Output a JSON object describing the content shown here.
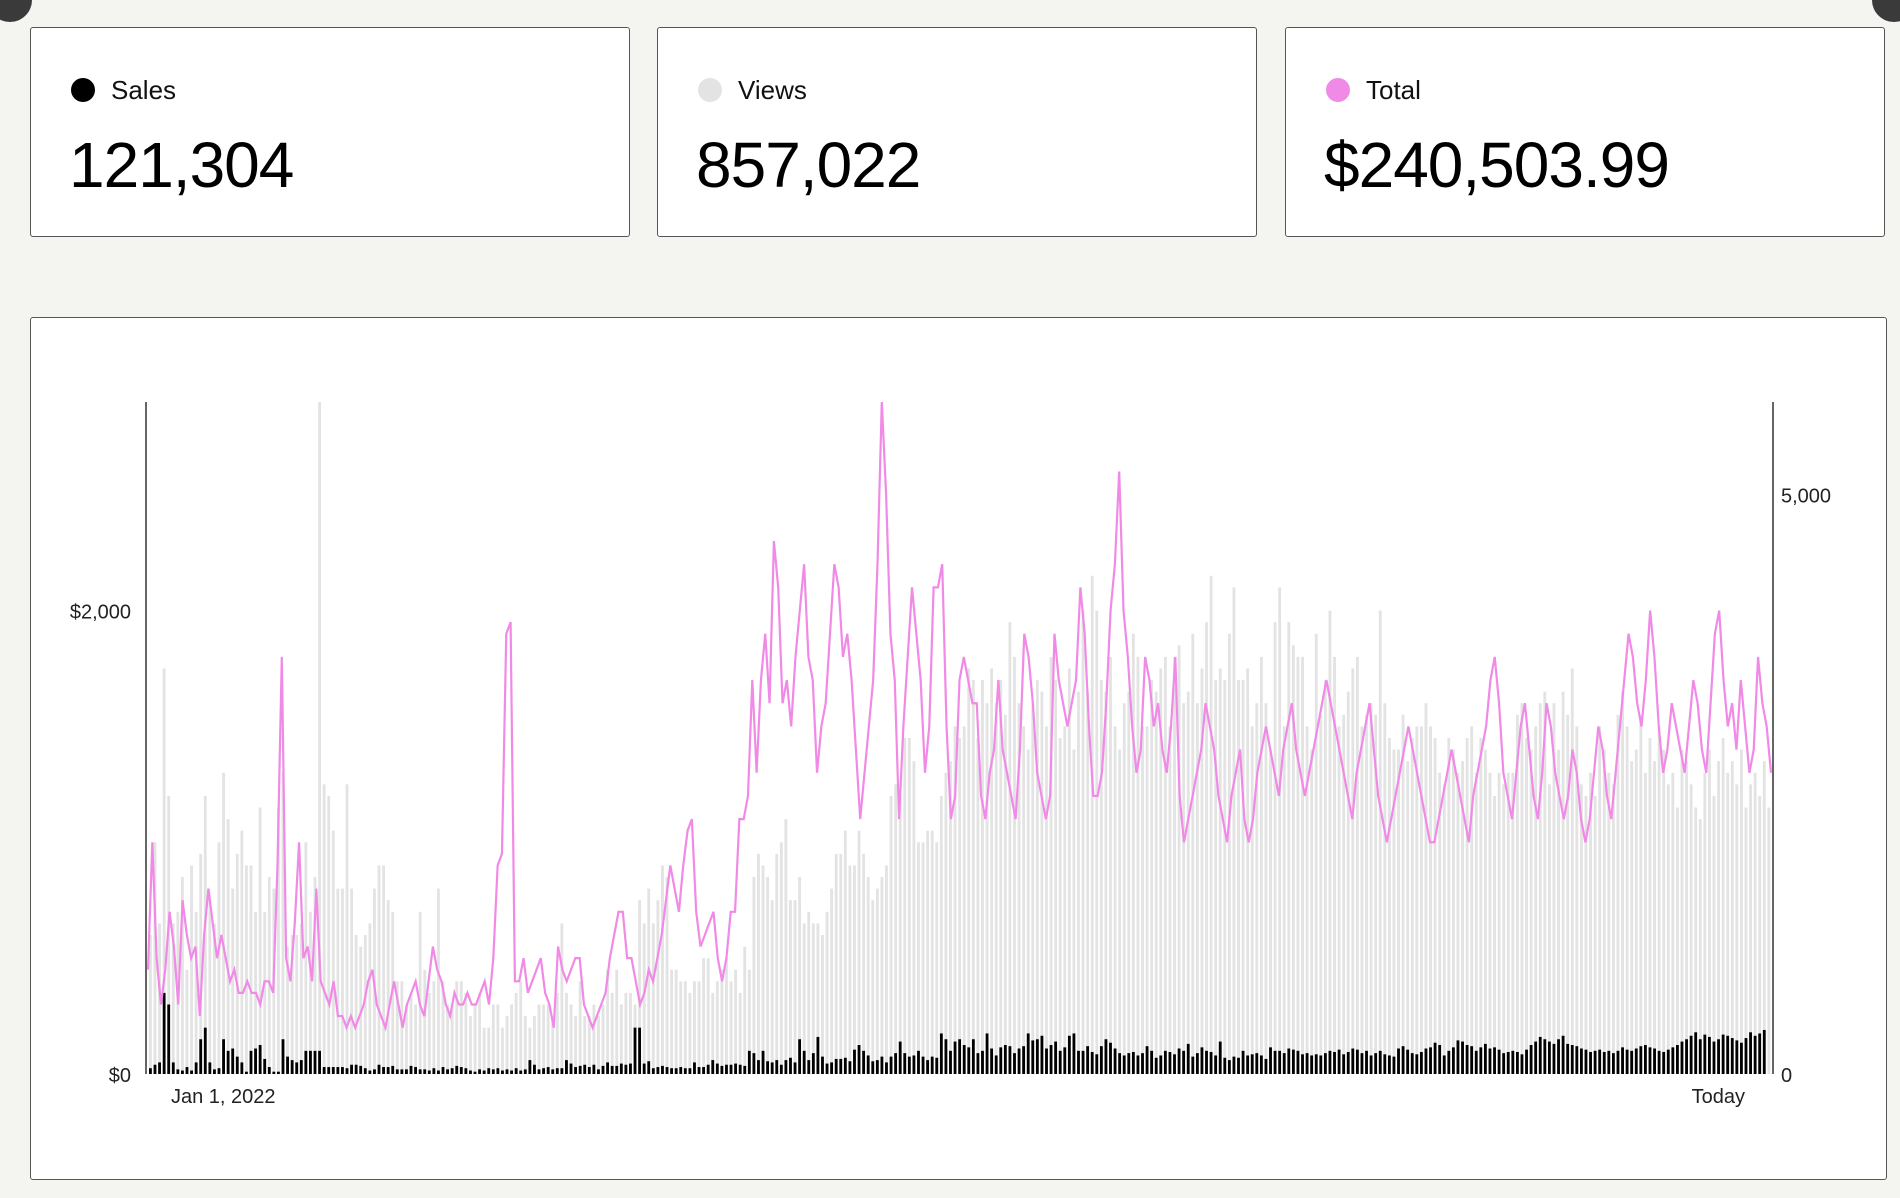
{
  "stats": [
    {
      "label": "Sales",
      "value": "121,304",
      "color": "#000000"
    },
    {
      "label": "Views",
      "value": "857,022",
      "color": "#e3e3e3"
    },
    {
      "label": "Total",
      "value": "$240,503.99",
      "color": "#f08ae6"
    }
  ],
  "chart_data": {
    "type": "bar",
    "title": "",
    "x_tick_labels": [
      "Jan 1, 2022",
      "Today"
    ],
    "left_axis": {
      "tick_labels": [
        "$0",
        "$2,000"
      ],
      "ticks": [
        0,
        2000
      ],
      "range": [
        0,
        2900
      ],
      "series": "Total"
    },
    "right_axis": {
      "tick_labels": [
        "0",
        "5,000"
      ],
      "ticks": [
        0,
        5000
      ],
      "range": [
        0,
        5800
      ],
      "series": "Views"
    },
    "grid": false,
    "series": [
      {
        "name": "Views",
        "mark": "bar",
        "axis": "right",
        "color": "#e3e3e3",
        "values": [
          1200,
          2000,
          1300,
          3500,
          2400,
          1300,
          1400,
          1700,
          900,
          1800,
          1400,
          1900,
          2400,
          1500,
          1300,
          2000,
          2600,
          2200,
          1600,
          1900,
          2100,
          1800,
          1800,
          1400,
          2300,
          1400,
          1700,
          1600,
          2300,
          2600,
          1100,
          1200,
          1200,
          1300,
          2000,
          1400,
          1700,
          5800,
          2500,
          2400,
          2100,
          1600,
          1600,
          2500,
          1600,
          1200,
          1100,
          1200,
          1300,
          1600,
          1800,
          1800,
          1500,
          1400,
          800,
          800,
          600,
          700,
          600,
          1400,
          900,
          700,
          800,
          1600,
          800,
          600,
          600,
          800,
          800,
          700,
          500,
          600,
          700,
          400,
          400,
          600,
          600,
          400,
          500,
          600,
          700,
          800,
          500,
          400,
          500,
          600,
          600,
          600,
          500,
          700,
          1300,
          700,
          600,
          500,
          800,
          500,
          500,
          600,
          500,
          600,
          900,
          700,
          900,
          600,
          700,
          700,
          600,
          1500,
          1300,
          1600,
          1300,
          1500,
          1800,
          1700,
          900,
          900,
          800,
          800,
          700,
          800,
          800,
          1000,
          1000,
          700,
          800,
          900,
          1000,
          800,
          900,
          700,
          1100,
          900,
          1700,
          1900,
          1800,
          1700,
          1500,
          1900,
          2000,
          2200,
          1500,
          1500,
          1700,
          1300,
          1400,
          1300,
          1300,
          1200,
          1400,
          1600,
          1900,
          1900,
          2100,
          1800,
          1800,
          2100,
          1900,
          1700,
          1500,
          1600,
          1700,
          1800,
          2400,
          2500,
          2400,
          2900,
          2900,
          2700,
          2000,
          2000,
          2100,
          2100,
          2000,
          2400,
          2600,
          2700,
          3000,
          2900,
          3000,
          3500,
          3400,
          2900,
          3400,
          3200,
          3500,
          3200,
          3400,
          3100,
          3900,
          3600,
          3200,
          3000,
          2800,
          3200,
          3400,
          3300,
          3000,
          3600,
          3400,
          2900,
          3000,
          3500,
          2800,
          3300,
          4000,
          3300,
          4300,
          4000,
          3400,
          3300,
          3600,
          3000,
          2800,
          3200,
          3300,
          3800,
          3600,
          3000,
          3000,
          3400,
          3300,
          3500,
          3600,
          3000,
          3600,
          3700,
          3200,
          3300,
          3800,
          3200,
          3500,
          3900,
          4300,
          3400,
          3500,
          3400,
          3800,
          4200,
          3400,
          3400,
          3500,
          3000,
          3200,
          3600,
          3200,
          2800,
          3900,
          4200,
          3000,
          3900,
          3700,
          3600,
          3600,
          3000,
          2800,
          3800,
          3100,
          3400,
          4000,
          3600,
          3000,
          3100,
          3300,
          3500,
          3600,
          3000,
          3100,
          3200,
          3100,
          4000,
          3200,
          2900,
          2800,
          2800,
          3100,
          2700,
          2900,
          3000,
          3000,
          3200,
          3000,
          2900,
          2600,
          2500,
          2900,
          2800,
          2600,
          2700,
          2900,
          3000,
          2600,
          2900,
          2800,
          2600,
          2400,
          2600,
          2500,
          2600,
          2600,
          3100,
          3200,
          2900,
          2800,
          3000,
          3200,
          3300,
          2500,
          3200,
          2800,
          3300,
          3100,
          3500,
          3000,
          2500,
          2400,
          2600,
          2400,
          3000,
          2800,
          2600,
          2500,
          3100,
          3300,
          3000,
          2700,
          2800,
          3100,
          2600,
          2900,
          2700,
          3000,
          2800,
          2500,
          2600,
          2300,
          2800,
          2700,
          2500,
          2300,
          2200,
          2600,
          2800,
          2400,
          2700,
          2900,
          2600,
          2700,
          2500,
          2800,
          2300,
          2500,
          2600,
          2400,
          2700,
          2300
        ]
      },
      {
        "name": "Sales",
        "mark": "bar",
        "axis": "right",
        "color": "#000000",
        "values": [
          50,
          80,
          100,
          700,
          600,
          100,
          40,
          30,
          60,
          30,
          100,
          300,
          400,
          100,
          40,
          50,
          300,
          200,
          220,
          150,
          100,
          20,
          200,
          220,
          250,
          130,
          60,
          20,
          20,
          300,
          150,
          120,
          100,
          120,
          200,
          200,
          200,
          200,
          60,
          60,
          60,
          60,
          60,
          50,
          80,
          80,
          70,
          50,
          30,
          40,
          80,
          60,
          60,
          70,
          40,
          40,
          40,
          70,
          60,
          40,
          40,
          30,
          50,
          30,
          60,
          40,
          50,
          70,
          60,
          50,
          30,
          20,
          40,
          30,
          50,
          40,
          50,
          30,
          40,
          30,
          50,
          30,
          40,
          120,
          80,
          40,
          50,
          60,
          40,
          50,
          50,
          120,
          90,
          60,
          70,
          80,
          60,
          80,
          40,
          70,
          100,
          70,
          70,
          90,
          80,
          90,
          400,
          400,
          90,
          110,
          50,
          60,
          70,
          60,
          50,
          50,
          60,
          50,
          50,
          100,
          60,
          60,
          80,
          120,
          90,
          70,
          80,
          80,
          90,
          80,
          70,
          200,
          180,
          120,
          200,
          110,
          100,
          120,
          80,
          120,
          140,
          100,
          300,
          200,
          120,
          180,
          320,
          150,
          90,
          100,
          130,
          130,
          140,
          110,
          210,
          250,
          200,
          160,
          110,
          120,
          150,
          100,
          150,
          180,
          280,
          180,
          150,
          160,
          200,
          150,
          120,
          150,
          140,
          350,
          300,
          200,
          280,
          300,
          250,
          230,
          300,
          180,
          200,
          350,
          220,
          160,
          230,
          250,
          240,
          180,
          220,
          240,
          350,
          290,
          300,
          330,
          220,
          250,
          280,
          200,
          230,
          330,
          350,
          200,
          200,
          240,
          190,
          170,
          240,
          300,
          270,
          220,
          180,
          160,
          180,
          190,
          160,
          180,
          240,
          200,
          140,
          160,
          200,
          190,
          170,
          220,
          200,
          260,
          150,
          180,
          230,
          200,
          190,
          160,
          280,
          140,
          120,
          150,
          140,
          200,
          160,
          170,
          180,
          160,
          130,
          230,
          200,
          200,
          180,
          220,
          210,
          200,
          170,
          180,
          160,
          170,
          160,
          180,
          200,
          190,
          210,
          170,
          190,
          220,
          210,
          180,
          200,
          160,
          180,
          200,
          170,
          160,
          150,
          220,
          240,
          210,
          180,
          170,
          190,
          220,
          230,
          270,
          250,
          160,
          200,
          230,
          290,
          280,
          250,
          240,
          200,
          230,
          260,
          220,
          230,
          210,
          180,
          190,
          200,
          190,
          170,
          210,
          250,
          280,
          320,
          300,
          280,
          260,
          300,
          330,
          260,
          250,
          240,
          220,
          210,
          190,
          200,
          210,
          190,
          200,
          180,
          200,
          230,
          210,
          200,
          220,
          240,
          250,
          230,
          220,
          200,
          190,
          210,
          230,
          250,
          280,
          300,
          330,
          360,
          300,
          340,
          320,
          280,
          300,
          340,
          330,
          310,
          290,
          270,
          310,
          360,
          330,
          350,
          380
        ]
      },
      {
        "name": "Total",
        "mark": "line",
        "axis": "left",
        "color": "#f08ae6",
        "values": [
          450,
          1000,
          500,
          300,
          450,
          700,
          550,
          300,
          750,
          600,
          500,
          550,
          250,
          600,
          800,
          650,
          500,
          600,
          500,
          400,
          450,
          350,
          350,
          400,
          350,
          350,
          300,
          400,
          400,
          350,
          900,
          1800,
          500,
          400,
          650,
          1000,
          500,
          550,
          400,
          800,
          400,
          350,
          300,
          400,
          250,
          250,
          200,
          250,
          200,
          250,
          300,
          400,
          450,
          300,
          250,
          200,
          300,
          400,
          300,
          200,
          300,
          350,
          400,
          300,
          250,
          400,
          550,
          450,
          400,
          300,
          250,
          350,
          300,
          300,
          350,
          300,
          300,
          350,
          400,
          300,
          500,
          900,
          950,
          1900,
          1950,
          400,
          400,
          500,
          350,
          400,
          450,
          500,
          350,
          300,
          200,
          550,
          450,
          400,
          450,
          500,
          500,
          300,
          250,
          200,
          250,
          300,
          350,
          500,
          600,
          700,
          700,
          500,
          500,
          400,
          300,
          350,
          450,
          400,
          500,
          600,
          750,
          900,
          800,
          700,
          900,
          1050,
          1100,
          700,
          550,
          600,
          650,
          700,
          500,
          400,
          500,
          700,
          700,
          1100,
          1100,
          1200,
          1700,
          1300,
          1700,
          1900,
          1600,
          2300,
          2100,
          1600,
          1700,
          1500,
          1800,
          2000,
          2200,
          1800,
          1700,
          1300,
          1500,
          1600,
          1900,
          2200,
          2100,
          1800,
          1900,
          1700,
          1400,
          1100,
          1300,
          1500,
          1700,
          2200,
          2900,
          2500,
          1900,
          1700,
          1100,
          1500,
          1800,
          2100,
          1900,
          1700,
          1300,
          1500,
          2100,
          2100,
          2200,
          1500,
          1100,
          1200,
          1700,
          1800,
          1700,
          1600,
          1600,
          1200,
          1100,
          1300,
          1400,
          1700,
          1400,
          1300,
          1200,
          1100,
          1400,
          1900,
          1800,
          1600,
          1300,
          1200,
          1100,
          1200,
          1900,
          1700,
          1600,
          1500,
          1600,
          1700,
          2100,
          1900,
          1500,
          1200,
          1200,
          1300,
          1600,
          2000,
          2200,
          2600,
          2000,
          1800,
          1500,
          1300,
          1400,
          1800,
          1700,
          1500,
          1600,
          1400,
          1300,
          1500,
          1800,
          1200,
          1000,
          1100,
          1200,
          1300,
          1400,
          1600,
          1500,
          1400,
          1200,
          1100,
          1000,
          1200,
          1300,
          1400,
          1100,
          1000,
          1100,
          1300,
          1400,
          1500,
          1400,
          1300,
          1200,
          1400,
          1500,
          1600,
          1400,
          1300,
          1200,
          1300,
          1400,
          1500,
          1600,
          1700,
          1600,
          1500,
          1400,
          1300,
          1200,
          1100,
          1300,
          1400,
          1500,
          1600,
          1400,
          1200,
          1100,
          1000,
          1100,
          1200,
          1300,
          1400,
          1500,
          1400,
          1300,
          1200,
          1100,
          1000,
          1000,
          1100,
          1200,
          1300,
          1400,
          1300,
          1200,
          1100,
          1000,
          1200,
          1300,
          1400,
          1500,
          1700,
          1800,
          1600,
          1300,
          1200,
          1100,
          1300,
          1500,
          1600,
          1400,
          1200,
          1100,
          1300,
          1600,
          1500,
          1300,
          1200,
          1100,
          1200,
          1400,
          1300,
          1100,
          1000,
          1100,
          1300,
          1500,
          1400,
          1200,
          1100,
          1300,
          1500,
          1700,
          1900,
          1800,
          1600,
          1500,
          1700,
          2000,
          1800,
          1500,
          1300,
          1400,
          1600,
          1500,
          1400,
          1300,
          1500,
          1700,
          1600,
          1400,
          1300,
          1600,
          1900,
          2000,
          1700,
          1500,
          1600,
          1400,
          1700,
          1500,
          1300,
          1400,
          1800,
          1600,
          1500,
          1300
        ]
      }
    ]
  }
}
